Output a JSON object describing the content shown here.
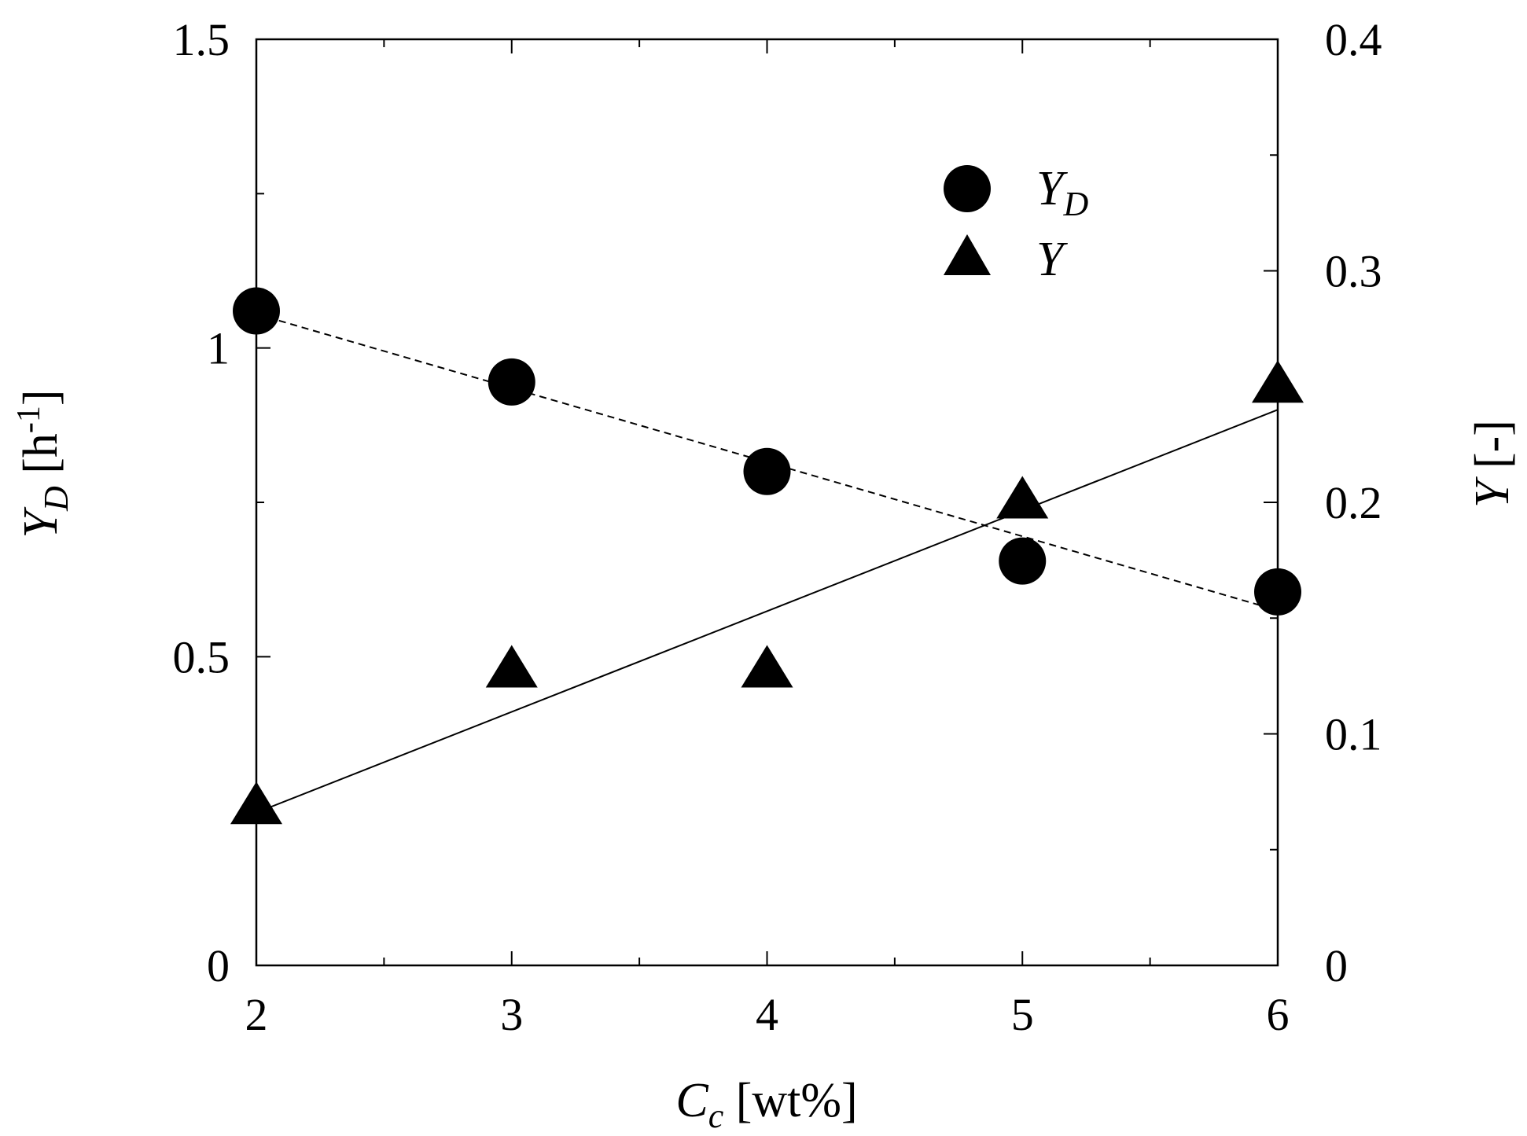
{
  "chart_data": {
    "type": "scatter",
    "x_axis": {
      "label_main": "C",
      "label_sub": "c",
      "label_unit": " [wt%]",
      "range": [
        2,
        6
      ],
      "major_ticks": [
        2,
        3,
        4,
        5,
        6
      ],
      "tick_labels": [
        "2",
        "3",
        "4",
        "5",
        "6"
      ],
      "minor_ticks": [
        2.5,
        3.5,
        4.5,
        5.5
      ]
    },
    "y_left_axis": {
      "label_main": "Y",
      "label_sub": "D",
      "label_unit_pre": " [h",
      "label_unit_sup": "-1",
      "label_unit_post": "]",
      "range": [
        0,
        1.5
      ],
      "major_ticks": [
        0,
        0.5,
        1,
        1.5
      ],
      "tick_labels": [
        "0",
        "0.5",
        "1",
        "1.5"
      ],
      "minor_ticks": [
        0.25,
        0.75,
        1.25
      ]
    },
    "y_right_axis": {
      "label_main": "Y",
      "label_unit": " [-]",
      "range": [
        0,
        0.4
      ],
      "major_ticks": [
        0,
        0.1,
        0.2,
        0.3,
        0.4
      ],
      "tick_labels": [
        "0",
        "0.1",
        "0.2",
        "0.3",
        "0.4"
      ],
      "minor_ticks": [
        0.05,
        0.15,
        0.25,
        0.35
      ]
    },
    "legend": {
      "placement": "upper-center-right",
      "entries": [
        {
          "marker": "circle",
          "main": "Y",
          "sub": "D"
        },
        {
          "marker": "triangle",
          "main": "Y",
          "sub": ""
        }
      ]
    },
    "series": [
      {
        "name": "YD",
        "axis": "left",
        "marker": "circle",
        "x": [
          2,
          3,
          4,
          5,
          6
        ],
        "y": [
          1.06,
          0.945,
          0.8,
          0.655,
          0.605
        ]
      },
      {
        "name": "Y",
        "axis": "right",
        "marker": "triangle",
        "x": [
          2,
          3,
          4,
          5,
          6
        ],
        "y": [
          0.068,
          0.127,
          0.127,
          0.2,
          0.25
        ]
      }
    ],
    "fit_lines": [
      {
        "series": "YD",
        "axis": "left",
        "style": "dashed",
        "x": [
          2,
          6
        ],
        "y": [
          1.055,
          0.575
        ]
      },
      {
        "series": "Y",
        "axis": "right",
        "style": "solid",
        "x": [
          2,
          6
        ],
        "y": [
          0.066,
          0.24
        ]
      }
    ],
    "colors": {
      "markers": "#000000",
      "lines": "#000000",
      "background": "#ffffff"
    }
  }
}
